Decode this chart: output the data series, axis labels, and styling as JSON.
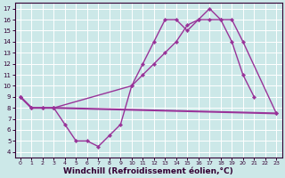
{
  "background_color": "#cce8e8",
  "grid_color": "#ffffff",
  "line_color": "#993399",
  "marker": "D",
  "markersize": 2.2,
  "linewidth": 1.0,
  "line1_x": [
    0,
    1,
    2,
    3,
    4,
    5,
    6,
    7,
    8,
    9,
    10,
    11,
    12,
    13,
    14,
    15,
    16,
    17,
    18,
    19,
    20,
    21
  ],
  "line1_y": [
    9,
    8,
    8,
    8,
    6.5,
    5,
    5,
    4.5,
    5.5,
    6.5,
    10,
    12,
    14,
    16,
    16,
    15,
    16,
    17,
    16,
    14,
    11,
    9
  ],
  "line2_x": [
    0,
    1,
    2,
    3,
    23
  ],
  "line2_y": [
    9,
    8,
    8,
    8,
    7.5
  ],
  "line3_x": [
    3,
    10,
    11,
    12,
    13,
    14,
    15,
    16,
    17,
    18,
    19,
    20,
    23
  ],
  "line3_y": [
    8,
    10,
    11,
    12,
    13,
    14,
    15.5,
    16,
    16,
    16,
    16,
    14,
    7.5
  ],
  "xlabel": "Windchill (Refroidissement éolien,°C)",
  "xlim": [
    -0.5,
    23.5
  ],
  "ylim": [
    3.5,
    17.5
  ],
  "xticks": [
    0,
    1,
    2,
    3,
    4,
    5,
    6,
    7,
    8,
    9,
    10,
    11,
    12,
    13,
    14,
    15,
    16,
    17,
    18,
    19,
    20,
    21,
    22,
    23
  ],
  "yticks": [
    4,
    5,
    6,
    7,
    8,
    9,
    10,
    11,
    12,
    13,
    14,
    15,
    16,
    17
  ]
}
